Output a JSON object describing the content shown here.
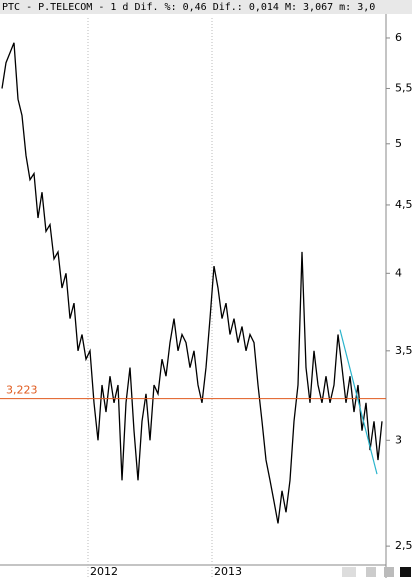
{
  "chart_data": {
    "type": "line",
    "title": "PTC - P.TELECOM -  1 d Dif. %: 0,46 Dif.: 0,014 M: 3,067 m: 3,0",
    "series": [
      {
        "name": "PTC",
        "color": "#000000",
        "values": [
          5.5,
          5.75,
          5.85,
          5.95,
          5.4,
          5.25,
          4.9,
          4.7,
          4.75,
          4.4,
          4.6,
          4.3,
          4.35,
          4.1,
          4.15,
          3.9,
          4.0,
          3.7,
          3.8,
          3.5,
          3.6,
          3.45,
          3.5,
          3.2,
          3.0,
          3.3,
          3.15,
          3.35,
          3.2,
          3.3,
          2.8,
          3.2,
          3.4,
          3.05,
          2.8,
          3.1,
          3.25,
          3.0,
          3.3,
          3.25,
          3.45,
          3.35,
          3.55,
          3.7,
          3.5,
          3.6,
          3.55,
          3.4,
          3.5,
          3.3,
          3.2,
          3.4,
          3.7,
          4.05,
          3.9,
          3.7,
          3.8,
          3.6,
          3.7,
          3.55,
          3.65,
          3.5,
          3.6,
          3.55,
          3.3,
          3.1,
          2.9,
          2.8,
          2.7,
          2.6,
          2.75,
          2.65,
          2.8,
          3.1,
          3.3,
          4.15,
          3.4,
          3.2,
          3.5,
          3.3,
          3.2,
          3.35,
          3.2,
          3.3,
          3.6,
          3.4,
          3.2,
          3.35,
          3.15,
          3.3,
          3.05,
          3.2,
          2.95,
          3.1,
          2.9,
          3.1
        ]
      }
    ],
    "xlim": [
      -0.5,
      95.5
    ],
    "xticks": [
      {
        "value": 21.5,
        "label": "2012"
      },
      {
        "value": 52.5,
        "label": "2013"
      }
    ],
    "ylim": [
      2.42,
      6.21
    ],
    "log_scale": true,
    "yticks": [
      {
        "value": 2.5,
        "label": "2,5"
      },
      3,
      {
        "value": 3.5,
        "label": "3,5"
      },
      4,
      {
        "value": 4.5,
        "label": "4,5"
      },
      5,
      {
        "value": 5.5,
        "label": "5,5"
      },
      6
    ],
    "reference_line": {
      "value": 3.223,
      "label": "3,223",
      "color": "#e05a1e"
    },
    "trendline": {
      "x": [
        84.5,
        93.75
      ],
      "values": [
        3.63,
        2.83
      ],
      "color": "#2ab4cc"
    }
  }
}
